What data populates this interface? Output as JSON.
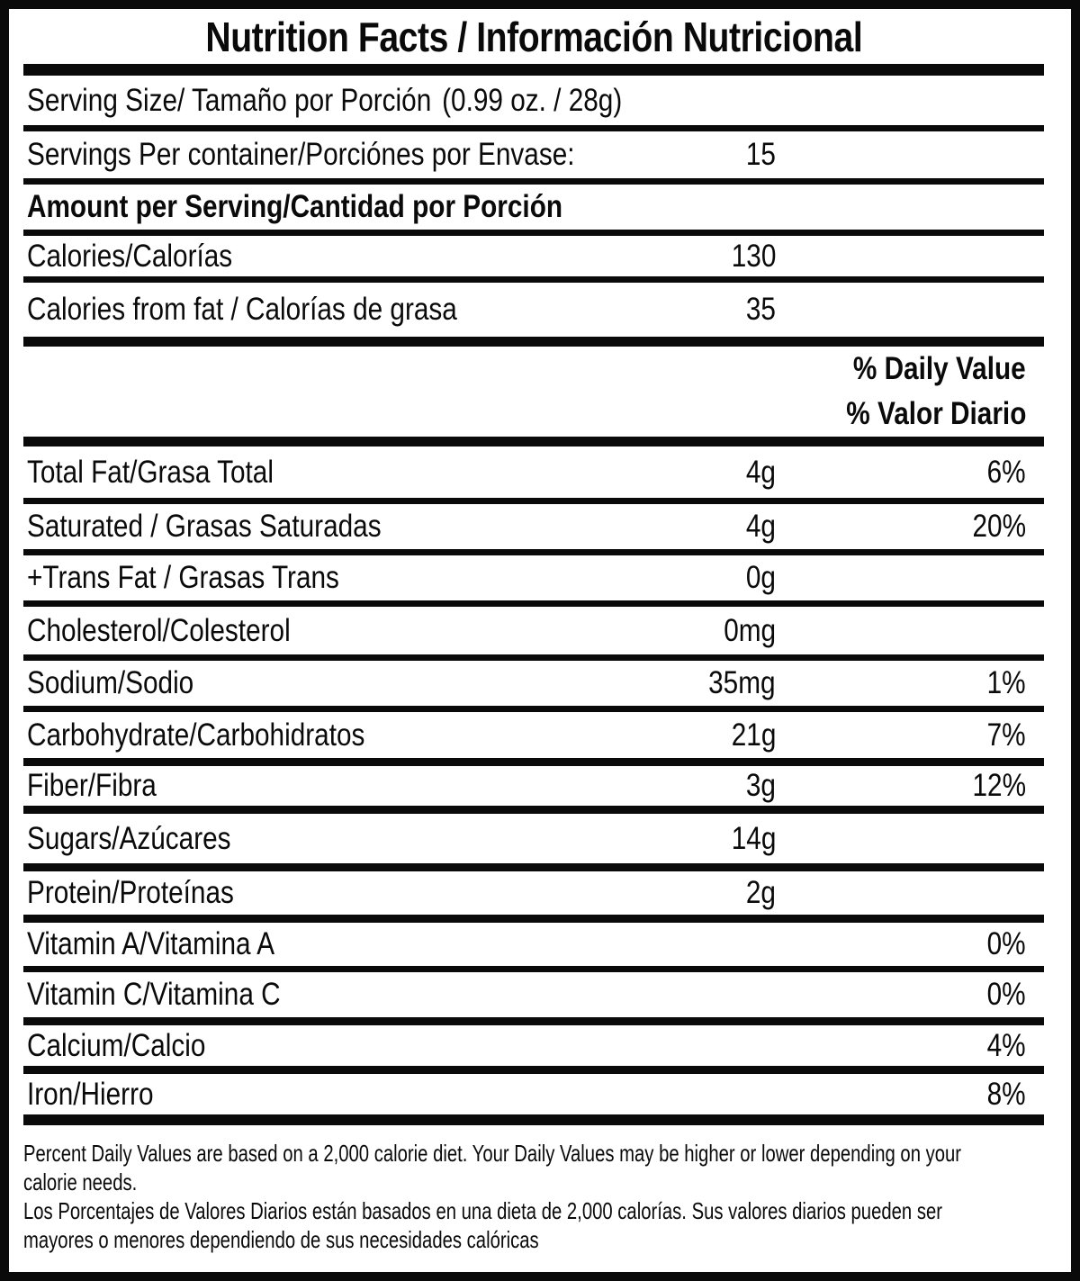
{
  "colors": {
    "ink": "#0a0a0a",
    "paper": "#ffffff"
  },
  "title": "Nutrition Facts / Información Nutricional",
  "serving": {
    "label": "Serving Size/ Tamaño por Porción",
    "value": "(0.99 oz. / 28g)"
  },
  "servings_per_container": {
    "label": "Servings Per container/Porciónes por Envase:",
    "value": "15"
  },
  "amount_header": "Amount per Serving/Cantidad por Porción",
  "calories": {
    "label": "Calories/Calorías",
    "value": "130"
  },
  "calories_from_fat": {
    "label": "Calories from fat / Calorías de grasa",
    "value": "35"
  },
  "dv_header": {
    "en": "% Daily Value",
    "es": "% Valor Diario"
  },
  "nutrients": [
    {
      "label": "Total Fat/Grasa Total",
      "amount": "4g",
      "dv": "6%"
    },
    {
      "label": "Saturated / Grasas Saturadas",
      "amount": "4g",
      "dv": "20%"
    },
    {
      "label": "+Trans Fat / Grasas Trans",
      "amount": "0g",
      "dv": ""
    },
    {
      "label": "Cholesterol/Colesterol",
      "amount": "0mg",
      "dv": ""
    },
    {
      "label": "Sodium/Sodio",
      "amount": "35mg",
      "dv": "1%"
    },
    {
      "label": "Carbohydrate/Carbohidratos",
      "amount": "21g",
      "dv": "7%"
    },
    {
      "label": "Fiber/Fibra",
      "amount": "3g",
      "dv": "12%"
    },
    {
      "label": "Sugars/Azúcares",
      "amount": "14g",
      "dv": ""
    },
    {
      "label": "Protein/Proteínas",
      "amount": "2g",
      "dv": ""
    },
    {
      "label": "Vitamin A/Vitamina A",
      "amount": "",
      "dv": "0%"
    },
    {
      "label": "Vitamin C/Vitamina C",
      "amount": "",
      "dv": "0%"
    },
    {
      "label": "Calcium/Calcio",
      "amount": "",
      "dv": "4%"
    },
    {
      "label": "Iron/Hierro",
      "amount": "",
      "dv": "8%"
    }
  ],
  "footnote": {
    "en": "Percent Daily Values are based on a 2,000 calorie diet. Your Daily Values may be higher or lower depending on your\ncalorie needs.",
    "es": "Los Porcentajes de Valores Diarios están basados en una dieta de 2,000 calorías. Sus valores diarios pueden ser\nmayores o menores dependiendo de sus necesidades calóricas"
  }
}
